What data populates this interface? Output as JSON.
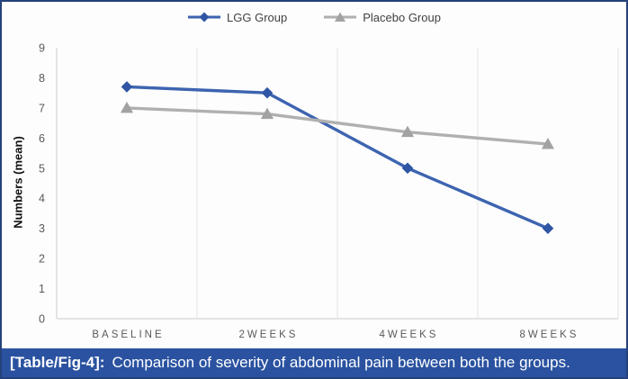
{
  "figure": {
    "border_color": "#26417b",
    "background": "#fdfdfd"
  },
  "chart_data": {
    "type": "line",
    "title": "",
    "xlabel": "",
    "ylabel": "Numbers (mean)",
    "categories": [
      "BASELINE",
      "2WEEKS",
      "4WEEKS",
      "8WEEKS"
    ],
    "series": [
      {
        "name": "LGG Group",
        "values": [
          7.7,
          7.5,
          5.0,
          3.0
        ],
        "color": "#3d64b0",
        "marker_color": "#2f55a4",
        "marker": "diamond"
      },
      {
        "name": "Placebo Group",
        "values": [
          7.0,
          6.8,
          6.2,
          5.8
        ],
        "color": "#b0b0b0",
        "marker_color": "#a2a2a2",
        "marker": "triangle"
      }
    ],
    "ylim": [
      0,
      9
    ],
    "yticks": [
      0,
      1,
      2,
      3,
      4,
      5,
      6,
      7,
      8,
      9
    ],
    "grid": "vertical-category-boundaries",
    "gridline_color": "#e3e3e3",
    "axis_line_color": "#d6d6d6",
    "legend_position": "top-center"
  },
  "caption": {
    "label": "[Table/Fig-4]:",
    "text": "Comparison of severity of abdominal pain between both the groups.",
    "background": "#2a52a0",
    "text_color": "#ffffff"
  }
}
